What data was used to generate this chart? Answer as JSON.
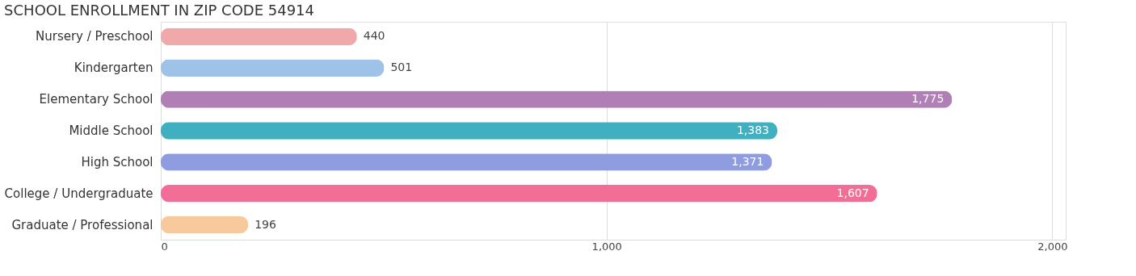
{
  "chart_data": {
    "type": "bar",
    "orientation": "horizontal",
    "title": "SCHOOL ENROLLMENT IN ZIP CODE 54914",
    "categories": [
      "Nursery / Preschool",
      "Kindergarten",
      "Elementary School",
      "Middle School",
      "High School",
      "College / Undergraduate",
      "Graduate / Professional"
    ],
    "values": [
      440,
      501,
      1775,
      1383,
      1371,
      1607,
      196
    ],
    "colors": [
      "#f0a8a8",
      "#9fc2e8",
      "#b07fb5",
      "#3fb0bf",
      "#8f9de0",
      "#f26e96",
      "#f8c99c"
    ],
    "xlim": [
      0,
      2030
    ],
    "xticks": [
      0,
      {
        "value": 1000,
        "label": "1,000"
      },
      {
        "value": 2000,
        "label": "2,000"
      }
    ],
    "grid": "x",
    "value_labels": [
      "440",
      "501",
      "1,775",
      "1,383",
      "1,371",
      "1,607",
      "196"
    ]
  }
}
